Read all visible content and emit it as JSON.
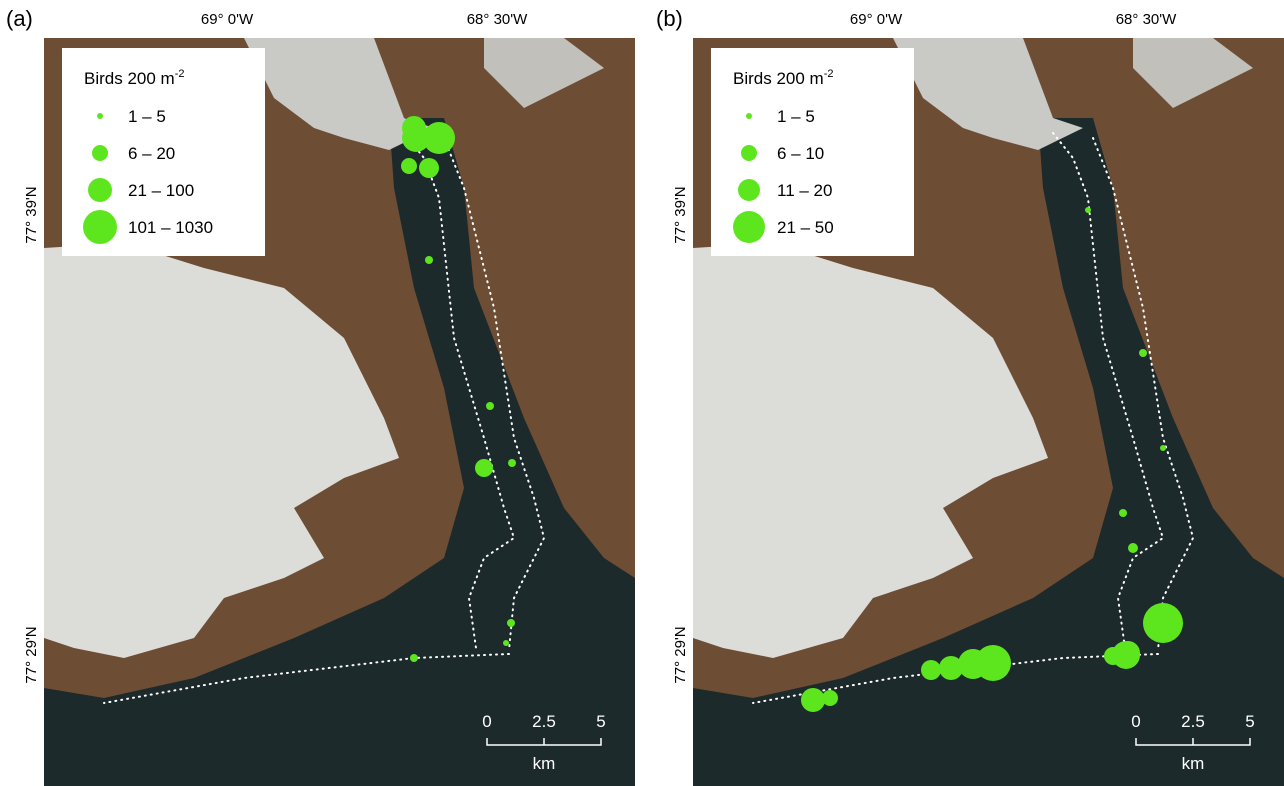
{
  "panels": [
    {
      "label": "(a)",
      "lon_labels": [
        "69° 0'W",
        "68° 30'W"
      ],
      "lat_labels": [
        "77° 39'N",
        "77° 29'N"
      ],
      "legend": {
        "title": "Birds 200 m",
        "title_sup": "-2",
        "entries": [
          "1 – 5",
          "6 – 20",
          "21 – 100",
          "101 – 1030"
        ]
      },
      "scale": {
        "ticks": [
          "0",
          "2.5",
          "5"
        ],
        "unit": "km"
      }
    },
    {
      "label": "(b)",
      "lon_labels": [
        "69° 0'W",
        "68° 30'W"
      ],
      "lat_labels": [
        "77° 39'N",
        "77° 29'N"
      ],
      "legend": {
        "title": "Birds 200 m",
        "title_sup": "-2",
        "entries": [
          "1 – 5",
          "6 – 10",
          "11 – 20",
          "21 – 50"
        ]
      },
      "scale": {
        "ticks": [
          "0",
          "2.5",
          "5"
        ],
        "unit": "km"
      }
    }
  ]
}
